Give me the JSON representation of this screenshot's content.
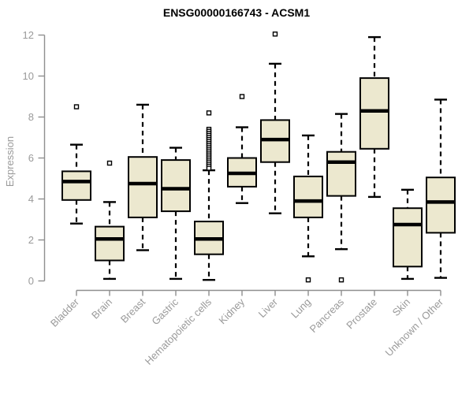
{
  "chart_data": {
    "type": "box",
    "title": "ENSG00000166743 - ACSM1",
    "ylabel": "Expression",
    "xlabel": "",
    "ylim": [
      0,
      12
    ],
    "yticks": [
      0,
      2,
      4,
      6,
      8,
      10,
      12
    ],
    "grid": false,
    "legend": "none",
    "categories": [
      "Bladder",
      "Brain",
      "Breast",
      "Gastric",
      "Hematopoietic cells",
      "Kidney",
      "Liver",
      "Lung",
      "Pancreas",
      "Prostate",
      "Skin",
      "Unknown / Other"
    ],
    "series": [
      {
        "category": "Bladder",
        "low": 2.8,
        "q1": 3.95,
        "median": 4.85,
        "q3": 5.35,
        "high": 6.65,
        "outliers": [
          8.5
        ]
      },
      {
        "category": "Brain",
        "low": 0.1,
        "q1": 1.0,
        "median": 2.05,
        "q3": 2.65,
        "high": 3.85,
        "outliers": [
          5.75
        ]
      },
      {
        "category": "Breast",
        "low": 1.5,
        "q1": 3.1,
        "median": 4.75,
        "q3": 6.05,
        "high": 8.6,
        "outliers": []
      },
      {
        "category": "Gastric",
        "low": 0.1,
        "q1": 3.4,
        "median": 4.5,
        "q3": 5.9,
        "high": 6.5,
        "outliers": []
      },
      {
        "category": "Hematopoietic cells",
        "low": 0.05,
        "q1": 1.3,
        "median": 2.05,
        "q3": 2.9,
        "high": 5.4,
        "outliers": [
          8.2,
          7.4,
          7.3,
          7.2,
          7.1,
          7.0,
          6.9,
          6.8,
          6.7,
          6.6,
          6.5,
          6.4,
          6.3,
          6.2,
          6.1,
          6.0,
          5.9,
          5.8,
          5.7,
          5.6,
          5.5
        ]
      },
      {
        "category": "Kidney",
        "low": 3.8,
        "q1": 4.6,
        "median": 5.25,
        "q3": 6.0,
        "high": 7.5,
        "outliers": [
          9.0
        ]
      },
      {
        "category": "Liver",
        "low": 3.3,
        "q1": 5.8,
        "median": 6.9,
        "q3": 7.85,
        "high": 10.6,
        "outliers": [
          12.05
        ]
      },
      {
        "category": "Lung",
        "low": 1.2,
        "q1": 3.1,
        "median": 3.9,
        "q3": 5.1,
        "high": 7.1,
        "outliers": [
          0.05
        ]
      },
      {
        "category": "Pancreas",
        "low": 1.55,
        "q1": 4.15,
        "median": 5.8,
        "q3": 6.3,
        "high": 8.15,
        "outliers": [
          0.05
        ]
      },
      {
        "category": "Prostate",
        "low": 4.1,
        "q1": 6.45,
        "median": 8.3,
        "q3": 9.9,
        "high": 11.9,
        "outliers": []
      },
      {
        "category": "Skin",
        "low": 0.1,
        "q1": 0.7,
        "median": 2.75,
        "q3": 3.55,
        "high": 4.45,
        "outliers": []
      },
      {
        "category": "Unknown / Other",
        "low": 0.15,
        "q1": 2.35,
        "median": 3.85,
        "q3": 5.05,
        "high": 8.85,
        "outliers": []
      }
    ],
    "colors": {
      "box_fill": "#ece8cf",
      "box_stroke": "#000000",
      "median": "#000000",
      "whisker": "#000000",
      "outlier_fill": "#ffffff",
      "axis_line": "#8f8f8f",
      "tick_label": "#9a9a9a",
      "title": "#000000",
      "background": "#ffffff"
    }
  }
}
